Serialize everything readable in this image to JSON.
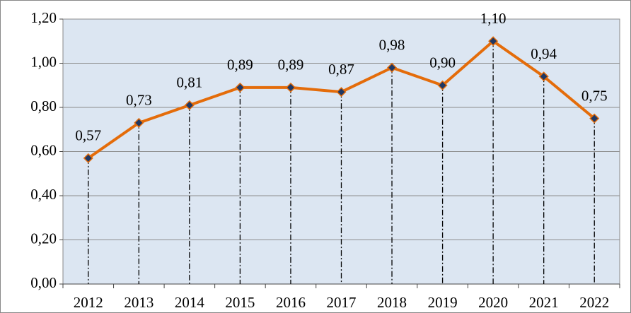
{
  "chart_data": {
    "type": "line",
    "categories": [
      "2012",
      "2013",
      "2014",
      "2015",
      "2016",
      "2017",
      "2018",
      "2019",
      "2020",
      "2021",
      "2022"
    ],
    "values": [
      0.57,
      0.73,
      0.81,
      0.89,
      0.89,
      0.87,
      0.98,
      0.9,
      1.1,
      0.94,
      0.75
    ],
    "value_labels": [
      "0,57",
      "0,73",
      "0,81",
      "0,89",
      "0,89",
      "0,87",
      "0,98",
      "0,90",
      "1,10",
      "0,94",
      "0,75"
    ],
    "color": "#e46c0a",
    "marker_color": "#1f3864",
    "background": "#dce6f2",
    "ylim": [
      0,
      1.2
    ],
    "yticks": [
      {
        "value": 0,
        "label": "0,00"
      },
      {
        "value": 0.2,
        "label": "0,20"
      },
      {
        "value": 0.4,
        "label": "0,40"
      },
      {
        "value": 0.6,
        "label": "0,60"
      },
      {
        "value": 0.8,
        "label": "0,80"
      },
      {
        "value": 1.0,
        "label": "1,00"
      },
      {
        "value": 1.2,
        "label": "1,20"
      }
    ],
    "grid": true,
    "drop_lines": true
  }
}
